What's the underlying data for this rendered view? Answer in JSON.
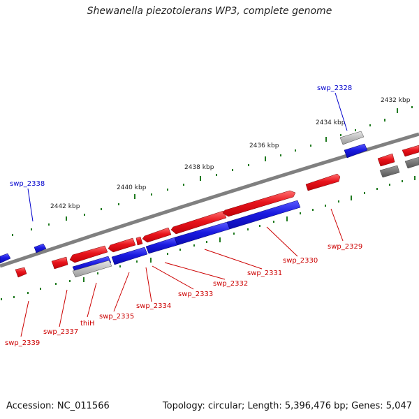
{
  "title": "Shewanella piezotolerans WP3, complete genome",
  "footer": {
    "accession": "Accession: NC_011566",
    "summary": "Topology: circular; Length: 5,396,476 bp; Genes: 5,047"
  },
  "colors": {
    "forward_cds": "#e8141c",
    "reverse_cds": "#1a1ae0",
    "rna_gene_light": "#b0b0b0",
    "rna_gene_dark": "#707070",
    "backbone": "#808080",
    "ticks": "#1f7a1f",
    "tick_label": "#222222",
    "gene_label_forward": "#cc0000",
    "gene_label_reverse": "#0000cc"
  },
  "tick_labels": [
    "2432 kbp",
    "2434 kbp",
    "2436 kbp",
    "2438 kbp",
    "2440 kbp",
    "2442 kbp"
  ],
  "gene_labels": [
    {
      "text": "swp_2328",
      "strand": "reverse"
    },
    {
      "text": "swp_2338",
      "strand": "reverse"
    },
    {
      "text": "swp_2329",
      "strand": "forward"
    },
    {
      "text": "swp_2330",
      "strand": "forward"
    },
    {
      "text": "swp_2331",
      "strand": "forward"
    },
    {
      "text": "swp_2332",
      "strand": "forward"
    },
    {
      "text": "swp_2333",
      "strand": "forward"
    },
    {
      "text": "swp_2334",
      "strand": "forward"
    },
    {
      "text": "swp_2335",
      "strand": "forward"
    },
    {
      "text": "thiH",
      "strand": "forward"
    },
    {
      "text": "swp_2337",
      "strand": "forward"
    },
    {
      "text": "swp_2339",
      "strand": "forward"
    }
  ]
}
